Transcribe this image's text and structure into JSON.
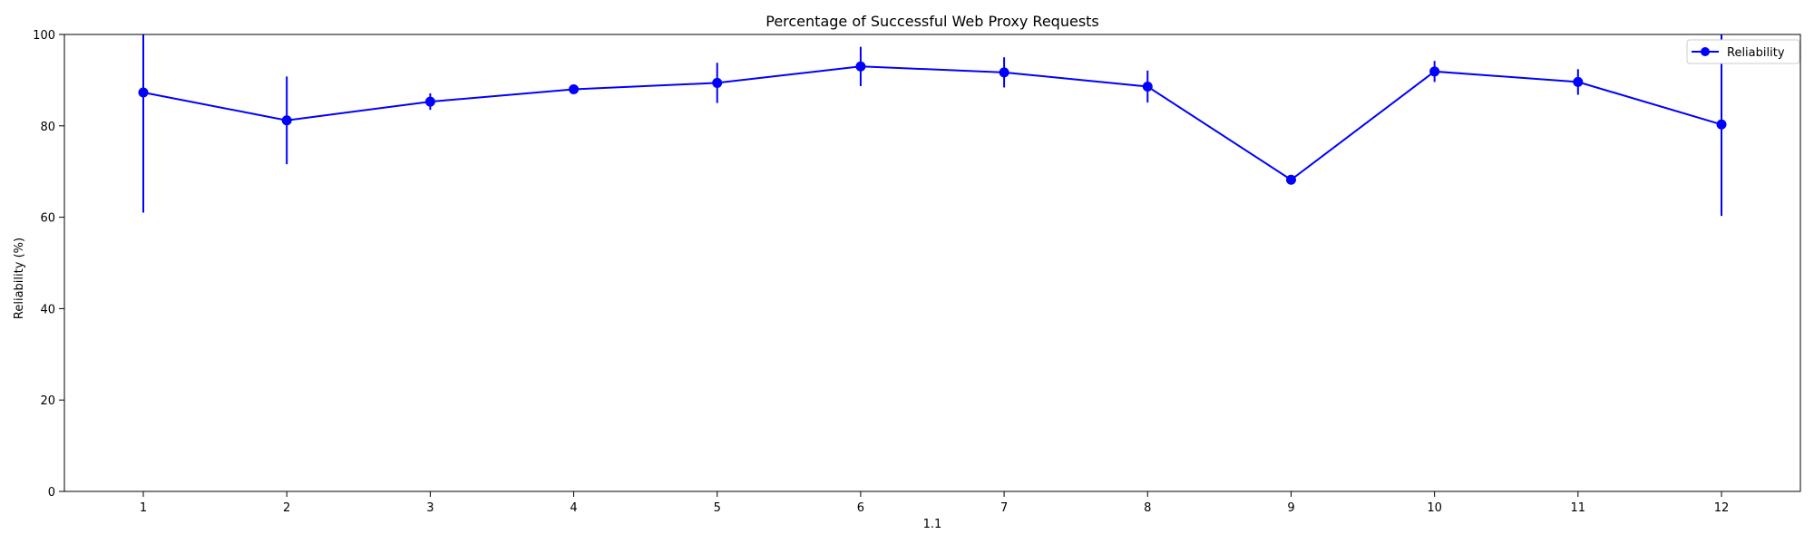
{
  "chart_data": {
    "type": "line",
    "title": "Percentage of Successful Web Proxy Requests",
    "xlabel": "1.1",
    "ylabel": "Reliability (%)",
    "x": [
      1,
      2,
      3,
      4,
      5,
      6,
      7,
      8,
      9,
      10,
      11,
      12
    ],
    "xlim": [
      0.45,
      12.55
    ],
    "ylim": [
      0,
      100
    ],
    "yticks": [
      0,
      20,
      40,
      60,
      80,
      100
    ],
    "grid": false,
    "legend_position": "top-right",
    "series": [
      {
        "name": "Reliability",
        "color": "#0000ff",
        "values": [
          87.3,
          81.2,
          85.3,
          88.0,
          89.4,
          93.0,
          91.7,
          88.6,
          68.2,
          91.9,
          89.6,
          80.3
        ],
        "error": [
          26.3,
          9.6,
          1.8,
          0.9,
          4.4,
          4.3,
          3.3,
          3.5,
          0.3,
          2.3,
          2.8,
          20.0
        ]
      }
    ]
  }
}
